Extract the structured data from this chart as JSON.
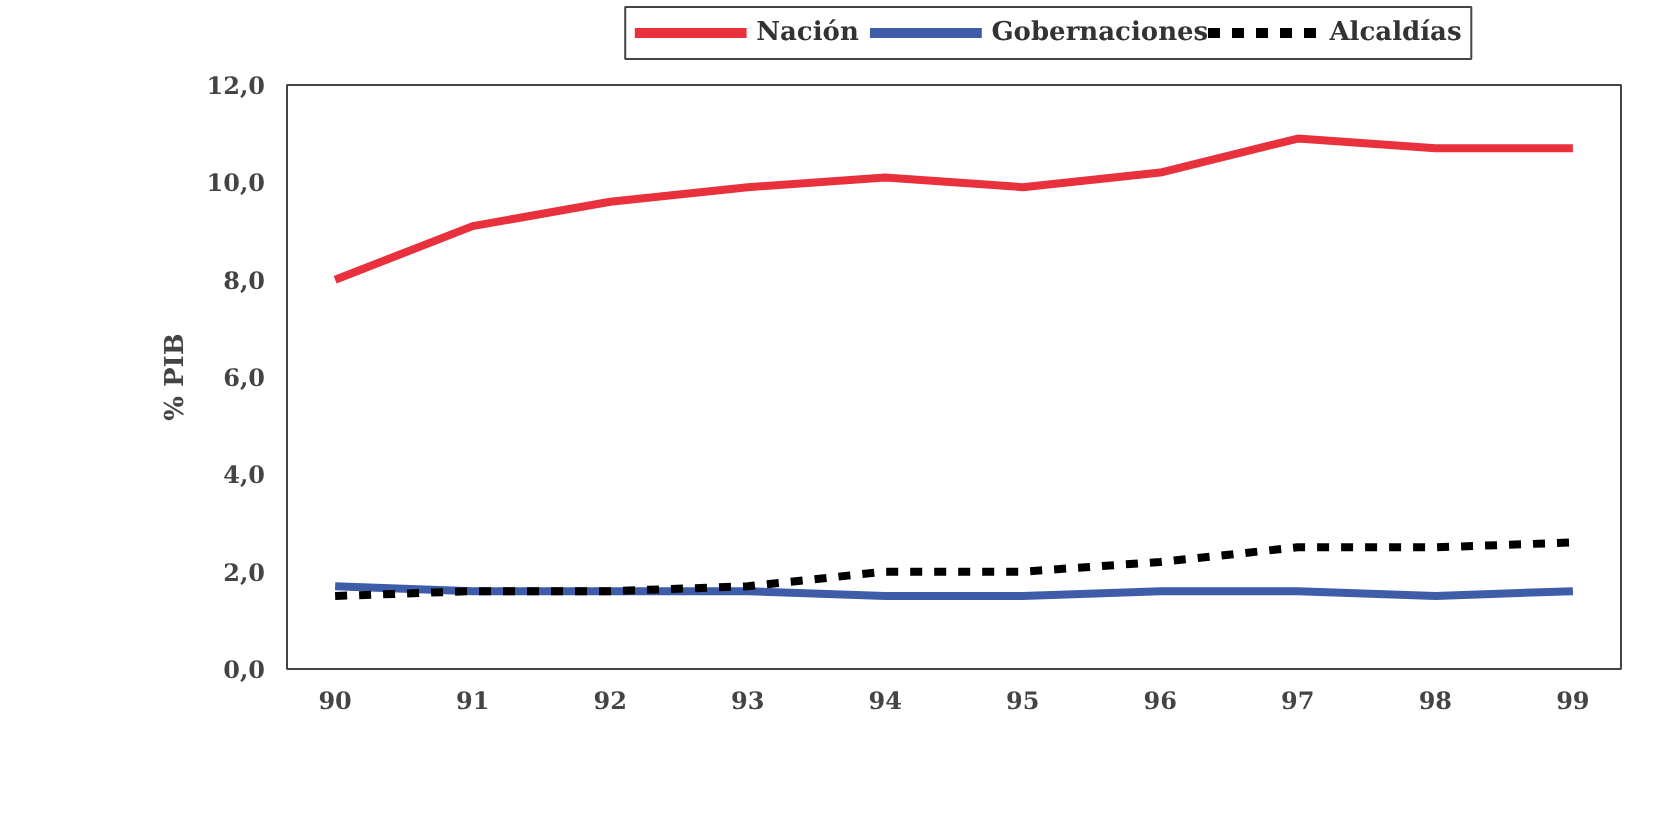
{
  "chart_data": {
    "type": "line",
    "ylabel": "% PIB",
    "categories": [
      "90",
      "91",
      "92",
      "93",
      "94",
      "95",
      "96",
      "97",
      "98",
      "99"
    ],
    "series": [
      {
        "name": "Nación",
        "color": "#e8313c",
        "values": [
          8.0,
          9.1,
          9.6,
          9.9,
          10.1,
          9.9,
          10.2,
          10.9,
          10.7,
          10.7
        ]
      },
      {
        "name": "Gobernaciones",
        "color": "#3f5ca8",
        "values": [
          1.7,
          1.6,
          1.6,
          1.6,
          1.5,
          1.5,
          1.6,
          1.6,
          1.5,
          1.6
        ]
      },
      {
        "name": "Alcaldías",
        "color": "#000000",
        "line_style": "dashed",
        "values": [
          1.5,
          1.6,
          1.6,
          1.7,
          2.0,
          2.0,
          2.2,
          2.5,
          2.5,
          2.6
        ]
      }
    ],
    "ylim": [
      0,
      12
    ],
    "yticks": [
      {
        "value": 0,
        "label": "0,0"
      },
      {
        "value": 2,
        "label": "2,0"
      },
      {
        "value": 4,
        "label": "4,0"
      },
      {
        "value": 6,
        "label": "6,0"
      },
      {
        "value": 8,
        "label": "8,0"
      },
      {
        "value": 10,
        "label": "10,0"
      },
      {
        "value": 12,
        "label": "12,0"
      }
    ],
    "grid": false,
    "legend": "top",
    "marker": "none"
  }
}
